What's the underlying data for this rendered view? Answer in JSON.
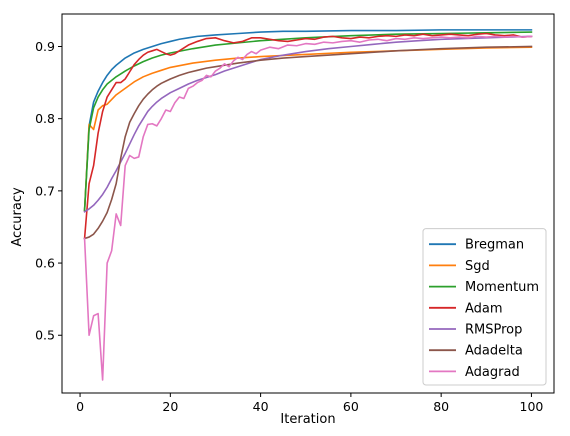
{
  "chart_data": {
    "type": "line",
    "title": "",
    "xlabel": "Iteration",
    "ylabel": "Accuracy",
    "xlim": [
      -4,
      105
    ],
    "ylim": [
      0.42,
      0.945
    ],
    "xticks": [
      0,
      20,
      40,
      60,
      80,
      100
    ],
    "xtick_labels": [
      "0",
      "20",
      "40",
      "60",
      "80",
      "100"
    ],
    "yticks": [
      0.5,
      0.6,
      0.7,
      0.8,
      0.9
    ],
    "ytick_labels": [
      "0.5",
      "0.6",
      "0.7",
      "0.8",
      "0.9"
    ],
    "grid": false,
    "legend_position": "lower-right",
    "series": [
      {
        "name": "Bregman",
        "color": "#1f77b4",
        "points": [
          [
            1,
            0.673
          ],
          [
            2,
            0.79
          ],
          [
            3,
            0.823
          ],
          [
            4,
            0.838
          ],
          [
            5,
            0.85
          ],
          [
            6,
            0.86
          ],
          [
            7,
            0.868
          ],
          [
            8,
            0.874
          ],
          [
            9,
            0.879
          ],
          [
            10,
            0.884
          ],
          [
            12,
            0.891
          ],
          [
            14,
            0.896
          ],
          [
            16,
            0.9
          ],
          [
            18,
            0.904
          ],
          [
            20,
            0.907
          ],
          [
            22,
            0.91
          ],
          [
            24,
            0.912
          ],
          [
            26,
            0.914
          ],
          [
            28,
            0.915
          ],
          [
            30,
            0.916
          ],
          [
            35,
            0.918
          ],
          [
            40,
            0.92
          ],
          [
            45,
            0.921
          ],
          [
            50,
            0.921
          ],
          [
            60,
            0.922
          ],
          [
            70,
            0.922
          ],
          [
            80,
            0.923
          ],
          [
            90,
            0.923
          ],
          [
            100,
            0.923
          ]
        ]
      },
      {
        "name": "Sgd",
        "color": "#ff7f0e",
        "points": [
          [
            1,
            0.673
          ],
          [
            2,
            0.792
          ],
          [
            3,
            0.785
          ],
          [
            4,
            0.812
          ],
          [
            5,
            0.818
          ],
          [
            6,
            0.82
          ],
          [
            8,
            0.833
          ],
          [
            10,
            0.842
          ],
          [
            12,
            0.851
          ],
          [
            14,
            0.858
          ],
          [
            16,
            0.863
          ],
          [
            18,
            0.867
          ],
          [
            20,
            0.871
          ],
          [
            25,
            0.877
          ],
          [
            30,
            0.881
          ],
          [
            35,
            0.884
          ],
          [
            40,
            0.886
          ],
          [
            50,
            0.889
          ],
          [
            60,
            0.892
          ],
          [
            70,
            0.894
          ],
          [
            80,
            0.896
          ],
          [
            90,
            0.898
          ],
          [
            100,
            0.899
          ]
        ]
      },
      {
        "name": "Momentum",
        "color": "#2ca02c",
        "points": [
          [
            1,
            0.673
          ],
          [
            2,
            0.785
          ],
          [
            3,
            0.815
          ],
          [
            4,
            0.83
          ],
          [
            5,
            0.84
          ],
          [
            6,
            0.848
          ],
          [
            8,
            0.858
          ],
          [
            10,
            0.866
          ],
          [
            12,
            0.873
          ],
          [
            14,
            0.879
          ],
          [
            16,
            0.884
          ],
          [
            18,
            0.888
          ],
          [
            20,
            0.891
          ],
          [
            25,
            0.897
          ],
          [
            30,
            0.902
          ],
          [
            35,
            0.905
          ],
          [
            40,
            0.908
          ],
          [
            50,
            0.912
          ],
          [
            60,
            0.915
          ],
          [
            70,
            0.917
          ],
          [
            80,
            0.918
          ],
          [
            90,
            0.919
          ],
          [
            100,
            0.92
          ]
        ]
      },
      {
        "name": "Adam",
        "color": "#d62728",
        "points": [
          [
            1,
            0.634
          ],
          [
            2,
            0.71
          ],
          [
            3,
            0.735
          ],
          [
            4,
            0.78
          ],
          [
            5,
            0.81
          ],
          [
            6,
            0.83
          ],
          [
            7,
            0.84
          ],
          [
            8,
            0.85
          ],
          [
            9,
            0.85
          ],
          [
            10,
            0.855
          ],
          [
            11,
            0.865
          ],
          [
            12,
            0.875
          ],
          [
            13,
            0.882
          ],
          [
            14,
            0.888
          ],
          [
            15,
            0.892
          ],
          [
            16,
            0.894
          ],
          [
            17,
            0.896
          ],
          [
            18,
            0.893
          ],
          [
            19,
            0.89
          ],
          [
            20,
            0.888
          ],
          [
            21,
            0.89
          ],
          [
            22,
            0.894
          ],
          [
            24,
            0.902
          ],
          [
            26,
            0.907
          ],
          [
            28,
            0.911
          ],
          [
            30,
            0.912
          ],
          [
            32,
            0.908
          ],
          [
            34,
            0.905
          ],
          [
            36,
            0.907
          ],
          [
            38,
            0.912
          ],
          [
            40,
            0.912
          ],
          [
            42,
            0.91
          ],
          [
            44,
            0.908
          ],
          [
            46,
            0.907
          ],
          [
            48,
            0.909
          ],
          [
            50,
            0.911
          ],
          [
            52,
            0.91
          ],
          [
            54,
            0.913
          ],
          [
            56,
            0.914
          ],
          [
            58,
            0.912
          ],
          [
            60,
            0.911
          ],
          [
            62,
            0.913
          ],
          [
            64,
            0.912
          ],
          [
            66,
            0.914
          ],
          [
            68,
            0.915
          ],
          [
            70,
            0.914
          ],
          [
            72,
            0.916
          ],
          [
            74,
            0.915
          ],
          [
            76,
            0.917
          ],
          [
            78,
            0.915
          ],
          [
            80,
            0.916
          ],
          [
            82,
            0.917
          ],
          [
            84,
            0.916
          ],
          [
            86,
            0.915
          ],
          [
            88,
            0.917
          ],
          [
            90,
            0.918
          ],
          [
            92,
            0.916
          ],
          [
            94,
            0.915
          ],
          [
            96,
            0.916
          ],
          [
            98,
            0.913
          ],
          [
            100,
            0.914
          ]
        ]
      },
      {
        "name": "RMSProp",
        "color": "#9467bd",
        "points": [
          [
            1,
            0.671
          ],
          [
            2,
            0.675
          ],
          [
            3,
            0.68
          ],
          [
            4,
            0.687
          ],
          [
            5,
            0.695
          ],
          [
            6,
            0.705
          ],
          [
            7,
            0.717
          ],
          [
            8,
            0.728
          ],
          [
            9,
            0.74
          ],
          [
            10,
            0.752
          ],
          [
            11,
            0.765
          ],
          [
            12,
            0.778
          ],
          [
            13,
            0.79
          ],
          [
            14,
            0.8
          ],
          [
            15,
            0.81
          ],
          [
            16,
            0.817
          ],
          [
            17,
            0.823
          ],
          [
            18,
            0.828
          ],
          [
            19,
            0.832
          ],
          [
            20,
            0.836
          ],
          [
            22,
            0.842
          ],
          [
            24,
            0.848
          ],
          [
            26,
            0.853
          ],
          [
            28,
            0.857
          ],
          [
            30,
            0.861
          ],
          [
            32,
            0.866
          ],
          [
            34,
            0.87
          ],
          [
            36,
            0.874
          ],
          [
            38,
            0.878
          ],
          [
            40,
            0.882
          ],
          [
            45,
            0.888
          ],
          [
            50,
            0.893
          ],
          [
            55,
            0.897
          ],
          [
            60,
            0.9
          ],
          [
            65,
            0.903
          ],
          [
            70,
            0.906
          ],
          [
            75,
            0.908
          ],
          [
            80,
            0.91
          ],
          [
            85,
            0.911
          ],
          [
            90,
            0.912
          ],
          [
            95,
            0.913
          ],
          [
            100,
            0.914
          ]
        ]
      },
      {
        "name": "Adadelta",
        "color": "#8c564b",
        "points": [
          [
            1,
            0.634
          ],
          [
            2,
            0.636
          ],
          [
            3,
            0.64
          ],
          [
            4,
            0.648
          ],
          [
            5,
            0.658
          ],
          [
            6,
            0.67
          ],
          [
            7,
            0.688
          ],
          [
            8,
            0.71
          ],
          [
            9,
            0.745
          ],
          [
            10,
            0.775
          ],
          [
            11,
            0.795
          ],
          [
            12,
            0.807
          ],
          [
            13,
            0.818
          ],
          [
            14,
            0.827
          ],
          [
            15,
            0.834
          ],
          [
            16,
            0.84
          ],
          [
            17,
            0.845
          ],
          [
            18,
            0.849
          ],
          [
            19,
            0.852
          ],
          [
            20,
            0.855
          ],
          [
            22,
            0.86
          ],
          [
            24,
            0.864
          ],
          [
            26,
            0.867
          ],
          [
            28,
            0.87
          ],
          [
            30,
            0.872
          ],
          [
            35,
            0.877
          ],
          [
            40,
            0.881
          ],
          [
            45,
            0.884
          ],
          [
            50,
            0.886
          ],
          [
            60,
            0.89
          ],
          [
            70,
            0.894
          ],
          [
            80,
            0.897
          ],
          [
            90,
            0.899
          ],
          [
            100,
            0.9
          ]
        ]
      },
      {
        "name": "Adagrad",
        "color": "#e377c2",
        "points": [
          [
            1,
            0.634
          ],
          [
            2,
            0.5
          ],
          [
            3,
            0.527
          ],
          [
            4,
            0.53
          ],
          [
            5,
            0.438
          ],
          [
            6,
            0.6
          ],
          [
            7,
            0.617
          ],
          [
            8,
            0.668
          ],
          [
            9,
            0.652
          ],
          [
            10,
            0.735
          ],
          [
            11,
            0.749
          ],
          [
            12,
            0.745
          ],
          [
            13,
            0.747
          ],
          [
            14,
            0.775
          ],
          [
            15,
            0.792
          ],
          [
            16,
            0.793
          ],
          [
            17,
            0.79
          ],
          [
            18,
            0.8
          ],
          [
            19,
            0.812
          ],
          [
            20,
            0.81
          ],
          [
            21,
            0.822
          ],
          [
            22,
            0.83
          ],
          [
            23,
            0.828
          ],
          [
            24,
            0.842
          ],
          [
            25,
            0.845
          ],
          [
            26,
            0.85
          ],
          [
            27,
            0.853
          ],
          [
            28,
            0.86
          ],
          [
            29,
            0.858
          ],
          [
            30,
            0.866
          ],
          [
            31,
            0.87
          ],
          [
            32,
            0.876
          ],
          [
            33,
            0.872
          ],
          [
            34,
            0.88
          ],
          [
            35,
            0.885
          ],
          [
            36,
            0.882
          ],
          [
            37,
            0.889
          ],
          [
            38,
            0.893
          ],
          [
            39,
            0.89
          ],
          [
            40,
            0.895
          ],
          [
            42,
            0.899
          ],
          [
            44,
            0.897
          ],
          [
            46,
            0.902
          ],
          [
            48,
            0.901
          ],
          [
            50,
            0.904
          ],
          [
            52,
            0.903
          ],
          [
            54,
            0.906
          ],
          [
            56,
            0.905
          ],
          [
            58,
            0.907
          ],
          [
            60,
            0.908
          ],
          [
            62,
            0.906
          ],
          [
            64,
            0.909
          ],
          [
            66,
            0.91
          ],
          [
            68,
            0.908
          ],
          [
            70,
            0.911
          ],
          [
            72,
            0.91
          ],
          [
            74,
            0.912
          ],
          [
            76,
            0.911
          ],
          [
            78,
            0.912
          ],
          [
            80,
            0.913
          ],
          [
            82,
            0.912
          ],
          [
            84,
            0.913
          ],
          [
            86,
            0.912
          ],
          [
            88,
            0.914
          ],
          [
            90,
            0.913
          ],
          [
            92,
            0.914
          ],
          [
            94,
            0.913
          ],
          [
            96,
            0.914
          ],
          [
            98,
            0.913
          ],
          [
            100,
            0.914
          ]
        ]
      }
    ]
  }
}
